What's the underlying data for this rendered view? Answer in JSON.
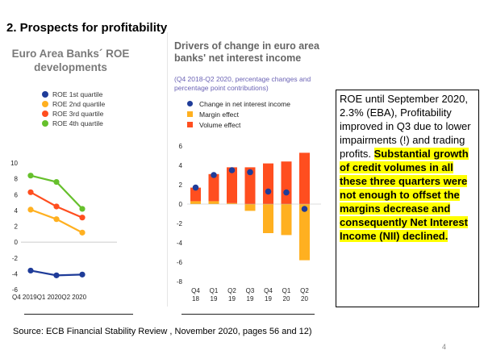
{
  "slide": {
    "title": "2. Prospects for profitability",
    "source": "Source:  ECB Financial Stability Review ,  November  2020, pages 56 and 12)",
    "page_number": "4"
  },
  "text_box": {
    "plain": "ROE until September 2020,  2.3% (EBA), Profitability improved in Q3 due to lower impairments (!) and trading profits.",
    "highlighted": "Substantial growth  of credit volumes in all these three quarters were not enough to offset the margins decrease and consequently Net Interest Income (NII) declined.",
    "highlight_color": "#ffff00"
  },
  "chart_data": [
    {
      "type": "line",
      "title": "Euro Area Banks´ ROE developments",
      "x": [
        "Q4 2019",
        "Q1 2020",
        "Q2 2020"
      ],
      "x_tick_labels": [
        "Q4 2019",
        "Q1 2020",
        "Q2 2020"
      ],
      "y_ticks": [
        -6,
        -4,
        -2,
        0,
        2,
        4,
        6,
        8,
        10
      ],
      "ylim": [
        -6,
        10
      ],
      "grid": false,
      "legend_position": "top",
      "series": [
        {
          "name": "ROE 1st quartile",
          "values": [
            -3.6,
            -4.2,
            -4.1
          ],
          "color": "#1f3c99"
        },
        {
          "name": "ROE 2nd quartile",
          "values": [
            4.1,
            2.9,
            1.2
          ],
          "color": "#ffb020"
        },
        {
          "name": "ROE 3rd quartile",
          "values": [
            6.3,
            4.5,
            3.1
          ],
          "color": "#ff4e1f"
        },
        {
          "name": "ROE 4th quartile",
          "values": [
            8.4,
            7.6,
            4.2
          ],
          "color": "#66c02c"
        }
      ]
    },
    {
      "type": "bar",
      "title": "Drivers of change in euro area banks' net interest income",
      "subtitle": "(Q4 2018-Q2 2020, percentage changes and percentage point contributions)",
      "categories": [
        "Q4 18",
        "Q1 19",
        "Q2 19",
        "Q3 19",
        "Q4 19",
        "Q1 20",
        "Q2 20"
      ],
      "category_lines": [
        [
          "Q4",
          "18"
        ],
        [
          "Q1",
          "19"
        ],
        [
          "Q2",
          "19"
        ],
        [
          "Q3",
          "19"
        ],
        [
          "Q4",
          "19"
        ],
        [
          "Q1",
          "20"
        ],
        [
          "Q2",
          "20"
        ]
      ],
      "y_ticks": [
        -8,
        -6,
        -4,
        -2,
        0,
        2,
        4,
        6
      ],
      "ylim": [
        -8,
        6
      ],
      "grid": false,
      "legend_position": "top-left",
      "series": [
        {
          "name": "Margin effect",
          "kind": "bar",
          "color": "#ffb020",
          "values": [
            0.3,
            0.3,
            0.1,
            -0.7,
            -3.0,
            -3.2,
            -5.8
          ]
        },
        {
          "name": "Volume effect",
          "kind": "bar",
          "color": "#ff4e1f",
          "values": [
            1.4,
            2.8,
            3.7,
            3.8,
            4.2,
            4.4,
            5.3
          ]
        },
        {
          "name": "Change in net interest income",
          "kind": "dot",
          "color": "#1f3c99",
          "values": [
            1.7,
            3.0,
            3.5,
            3.3,
            1.3,
            1.2,
            -0.5
          ]
        }
      ]
    }
  ]
}
